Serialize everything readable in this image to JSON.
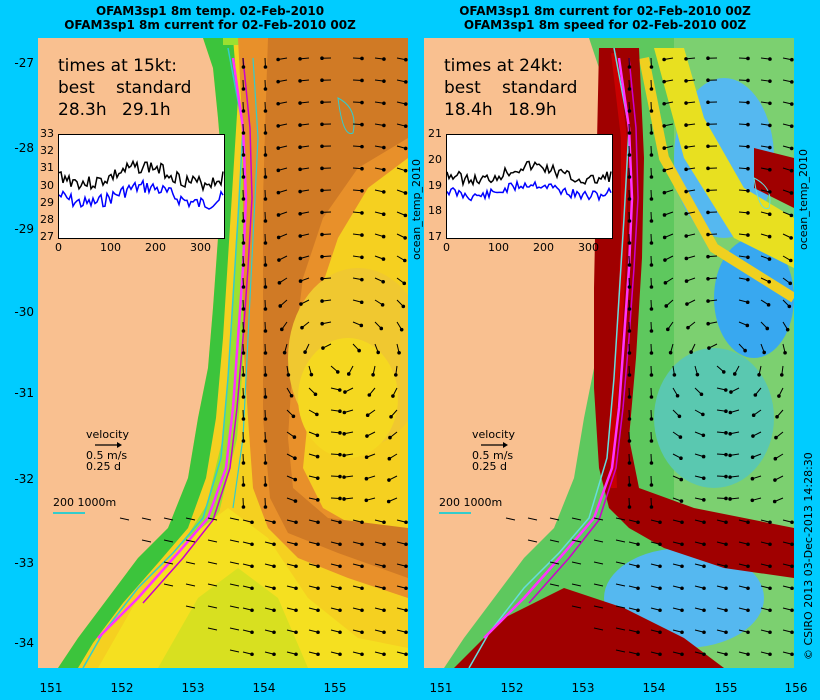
{
  "left_panel": {
    "title_line1": "OFAM3sp1 8m temp. 02-Feb-2010",
    "title_line2": "OFAM3sp1 8m current for 02-Feb-2010 00Z",
    "times_heading": "times at 15kt:",
    "col_best": "best",
    "col_standard": "standard",
    "best_value": "28.3h",
    "standard_value": "29.1h",
    "inset_yticks": [
      "33",
      "32",
      "31",
      "30",
      "29",
      "28",
      "27"
    ],
    "inset_xticks": [
      "0",
      "100",
      "200",
      "300"
    ],
    "side_label": "ocean_temp_2010"
  },
  "right_panel": {
    "title_line1": "OFAM3sp1 8m current for 02-Feb-2010 00Z",
    "title_line2": "OFAM3sp1 8m speed for 02-Feb-2010 00Z",
    "times_heading": "times at 24kt:",
    "col_best": "best",
    "col_standard": "standard",
    "best_value": "18.4h",
    "standard_value": "18.9h",
    "inset_yticks": [
      "21",
      "20",
      "19",
      "18",
      "17"
    ],
    "inset_xticks": [
      "0",
      "100",
      "200",
      "300"
    ],
    "side_label": "ocean_temp_2010"
  },
  "velocity_legend": {
    "label": "velocity",
    "speed": "0.5 m/s",
    "time": "0.25 d"
  },
  "isobath_legend": {
    "label": "200  1000m"
  },
  "y_ticks": [
    "-27",
    "-28",
    "-29",
    "-30",
    "-31",
    "-32",
    "-33",
    "-34"
  ],
  "x_ticks_left": [
    "151",
    "152",
    "153",
    "154",
    "155"
  ],
  "x_ticks_right": [
    "151",
    "152",
    "153",
    "154",
    "155",
    "156"
  ],
  "credit": "© CSIRO 2013   03-Dec-2013 14:28:30",
  "colors": {
    "land": "#f9c090",
    "frame": "#00ccff",
    "track": "#ff33ff",
    "route": "#cc00cc",
    "isobath": "#33cccc",
    "inset_blue": "#0000ff"
  }
}
